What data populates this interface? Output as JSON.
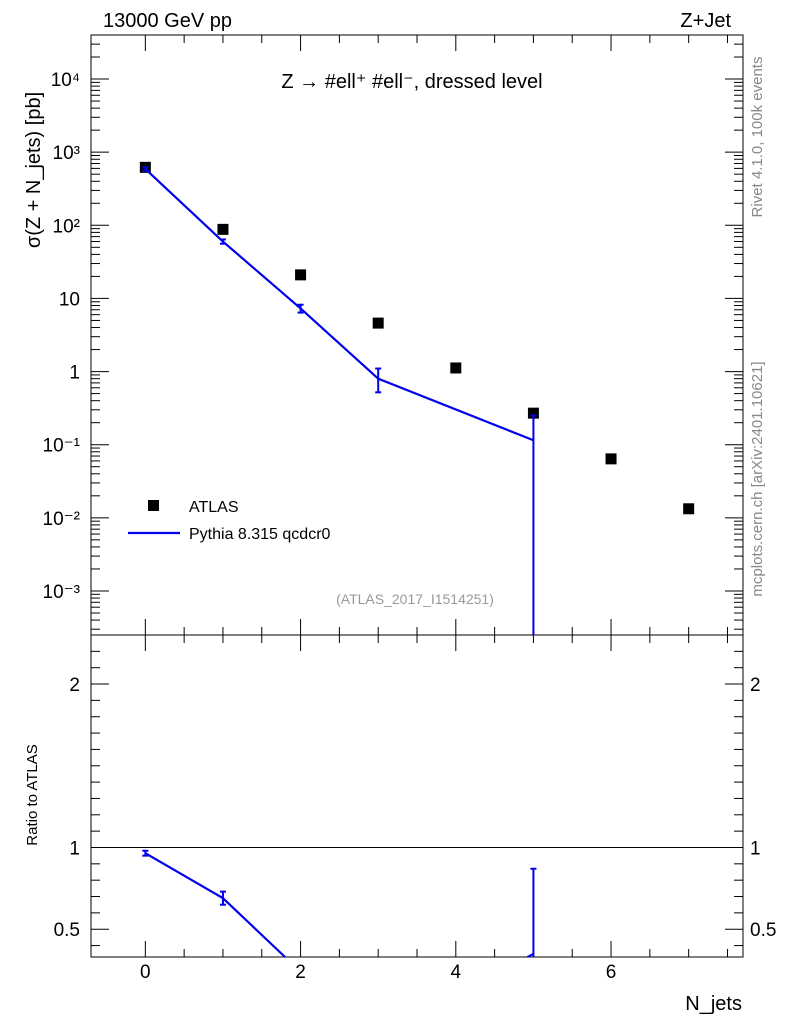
{
  "header": {
    "energy": "13000 GeV pp",
    "process": "Z+Jet"
  },
  "side_labels": {
    "rivet": "Rivet 4.1.0,  100k events",
    "source": "mcplots.cern.ch [arXiv:2401.10621]"
  },
  "chart_data": {
    "type": "scatter",
    "title": "Z → #ell⁺ #ell⁻, dressed level",
    "analysis": "(ATLAS_2017_I1514251)",
    "xlabel": "N_jets",
    "ylabel": "σ(Z + N_jets) [pb]",
    "xlim": [
      -0.7,
      7.7
    ],
    "ylim": [
      0.00025,
      40000
    ],
    "yscale": "log",
    "x_ticks": [
      "0",
      "2",
      "4",
      "6"
    ],
    "y_ticks": [
      "10⁻³",
      "10⁻²",
      "10⁻¹",
      "1",
      "10",
      "10²",
      "10³",
      "10⁴"
    ],
    "legend": {
      "position": "lower-left",
      "entries": [
        "ATLAS",
        "Pythia 8.315 qcdcr0"
      ]
    },
    "series": [
      {
        "name": "ATLAS",
        "style": "markers",
        "color": "#000000",
        "x": [
          0,
          1,
          2,
          3,
          4,
          5,
          6,
          7
        ],
        "values": [
          620,
          88,
          21,
          4.6,
          1.12,
          0.27,
          0.064,
          0.0133
        ]
      },
      {
        "name": "Pythia 8.315 qcdcr0",
        "style": "line",
        "color": "#0000ee",
        "x": [
          0,
          1,
          2,
          3,
          5
        ],
        "values": [
          590,
          60,
          7.3,
          0.8,
          0.115
        ],
        "err_low": [
          560,
          56,
          6.4,
          0.52,
          0.0001
        ],
        "err_high": [
          620,
          64,
          8.2,
          1.1,
          0.25
        ]
      }
    ],
    "ratio": {
      "ylabel": "Ratio to ATLAS",
      "ylim": [
        0.33,
        2.3
      ],
      "y_ticks": [
        "0.5",
        "1",
        "2"
      ],
      "reference": 1,
      "series": [
        {
          "name": "Pythia 8.315 qcdcr0",
          "x": [
            0,
            1,
            1.8
          ],
          "values": [
            0.965,
            0.69,
            0.33
          ],
          "err_low": [
            0.95,
            0.65,
            null
          ],
          "err_high": [
            0.98,
            0.73,
            null
          ]
        }
      ],
      "extra_errorbar": {
        "x": 5,
        "low": 0.33,
        "high": 0.87,
        "marker": 0.35
      }
    }
  }
}
